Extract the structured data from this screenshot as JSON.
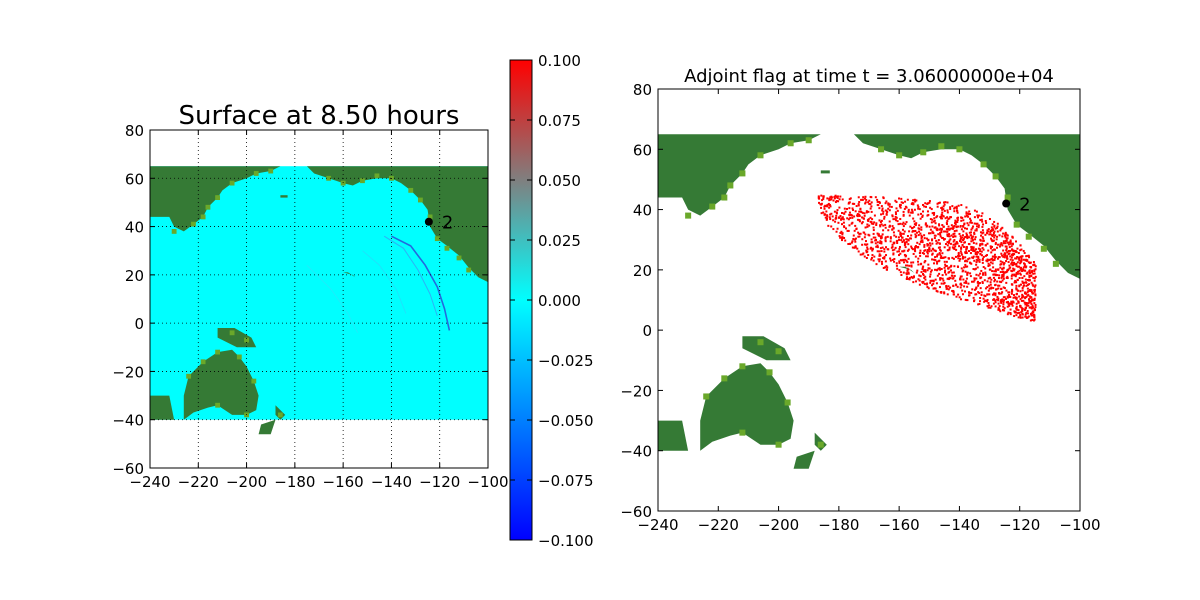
{
  "chart_data": [
    {
      "type": "heatmap",
      "title": "Surface at 8.50 hours",
      "xlim": [
        -240,
        -100
      ],
      "ylim": [
        -60,
        80
      ],
      "xticks": [
        -240,
        -220,
        -200,
        -180,
        -160,
        -140,
        -120,
        -100
      ],
      "yticks": [
        -60,
        -40,
        -20,
        0,
        20,
        40,
        60,
        80
      ],
      "grid": true,
      "grid_style": "dotted",
      "data_extent": {
        "x": [
          -240,
          -100
        ],
        "y": [
          -40,
          65
        ]
      },
      "field_value": 0.0,
      "wave_front_value": -0.02,
      "gauges": [
        {
          "label": "2",
          "x": -124.5,
          "y": 42
        }
      ],
      "colorbar": {
        "min": -0.1,
        "max": 0.1,
        "ticks": [
          "0.100",
          "0.075",
          "0.050",
          "0.025",
          "0.000",
          "−0.025",
          "−0.050",
          "−0.075",
          "−0.100"
        ],
        "colors": [
          "#0000ff",
          "#00ffff",
          "#ff0000"
        ]
      }
    },
    {
      "type": "heatmap",
      "title": "Adjoint flag at time t = 3.06000000e+04",
      "xlim": [
        -240,
        -100
      ],
      "ylim": [
        -60,
        80
      ],
      "xticks": [
        -240,
        -220,
        -200,
        -180,
        -160,
        -140,
        -120,
        -100
      ],
      "yticks": [
        -60,
        -40,
        -20,
        0,
        20,
        40,
        60,
        80
      ],
      "grid": false,
      "flag_color": "#ff0000",
      "flag_region": {
        "x": [
          -187,
          -115
        ],
        "y": [
          -1,
          45
        ]
      },
      "gauges": [
        {
          "label": "2",
          "x": -124.5,
          "y": 42
        }
      ]
    }
  ],
  "colors": {
    "land": "#357a35",
    "land_edge": "#6aa82a",
    "water": "#00ffff",
    "flag": "#ff0000"
  }
}
